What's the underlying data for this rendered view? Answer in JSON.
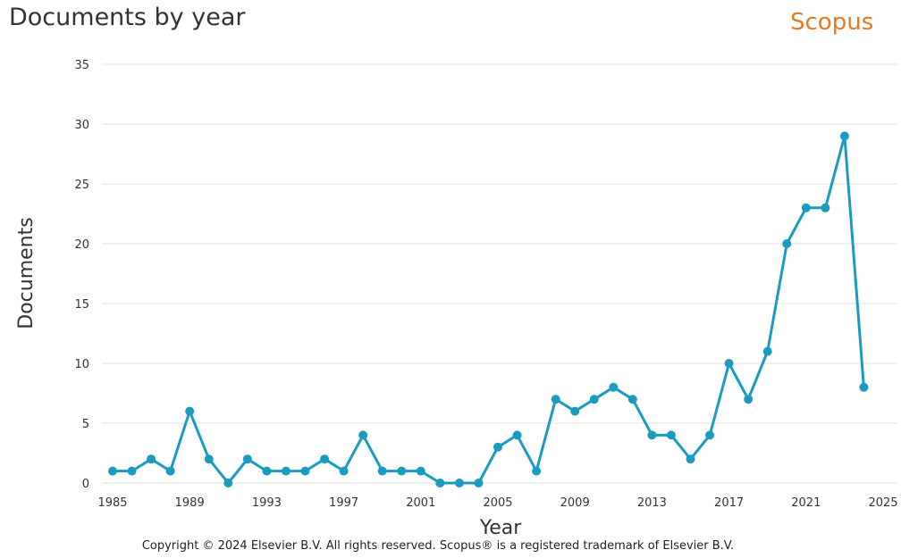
{
  "header": {
    "title": "Documents by year",
    "brand": "Scopus"
  },
  "footer": {
    "copyright": "Copyright © 2024 Elsevier B.V. All rights reserved. Scopus® is a registered trademark of Elsevier B.V."
  },
  "colors": {
    "series": "#1a9bc0",
    "grid": "#e2e2e2",
    "brand": "#e07b24"
  },
  "chart_data": {
    "type": "line",
    "title": "Documents by year",
    "xlabel": "Year",
    "ylabel": "Documents",
    "xlim": [
      1985,
      2025
    ],
    "ylim": [
      0,
      35
    ],
    "xticks": [
      1985,
      1989,
      1993,
      1997,
      2001,
      2005,
      2009,
      2013,
      2017,
      2021,
      2025
    ],
    "yticks": [
      0,
      5,
      10,
      15,
      20,
      25,
      30,
      35
    ],
    "grid": true,
    "legend": "none",
    "series": [
      {
        "x": [
          1985,
          1986,
          1987,
          1988,
          1989,
          1990,
          1991,
          1992,
          1993,
          1994,
          1995,
          1996,
          1997,
          1998,
          1999,
          2000,
          2001,
          2002,
          2003,
          2004,
          2005,
          2006,
          2007,
          2008,
          2009,
          2010,
          2011,
          2012,
          2013,
          2014,
          2015,
          2016,
          2017,
          2018,
          2019,
          2020,
          2021,
          2022,
          2023,
          2024
        ],
        "y": [
          1,
          1,
          2,
          1,
          6,
          2,
          0,
          2,
          1,
          1,
          1,
          2,
          1,
          4,
          1,
          1,
          1,
          0,
          0,
          0,
          3,
          4,
          1,
          7,
          6,
          7,
          8,
          7,
          4,
          4,
          2,
          4,
          10,
          7,
          11,
          20,
          23,
          23,
          29,
          8
        ]
      }
    ]
  }
}
